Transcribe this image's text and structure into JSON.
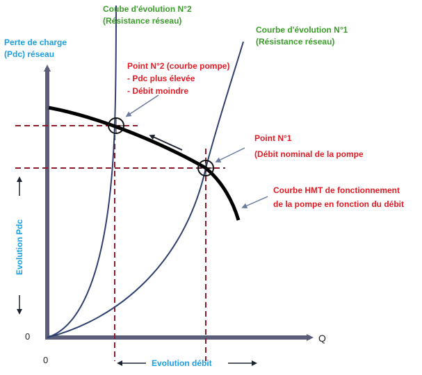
{
  "y_axis_title": [
    "Perte de charge",
    "(Pdc) réseau"
  ],
  "x_axis_label": "Q",
  "origin_y_label": "0",
  "origin_x_label": "0",
  "y_evolution_label": "Evolution Pdc",
  "x_evolution_label": "Evolution débit",
  "curve2_label": [
    "Coube d'évolution N°2",
    "(Résistance réseau)"
  ],
  "curve1_label": [
    "Courbe d'évolution N°1",
    "(Résistance réseau)"
  ],
  "point2_label": [
    "Point N°2 (courbe pompe)",
    "- Pdc plus élevée",
    "- Débit moindre"
  ],
  "point1_label": [
    "Point N°1",
    "(Débit nominal de la pompe"
  ],
  "hmt_label": [
    "Courbe HMT de fonctionnement",
    "de la pompe en fonction du débit"
  ],
  "colors": {
    "axis": "#5a5e7a",
    "network_curve": "#2e3f6e",
    "pump_curve": "#000000",
    "guides": "#8b1a2b",
    "blue_text": "#1aa0e0",
    "green_text": "#3a9d2a",
    "red_text": "#e01b24"
  }
}
